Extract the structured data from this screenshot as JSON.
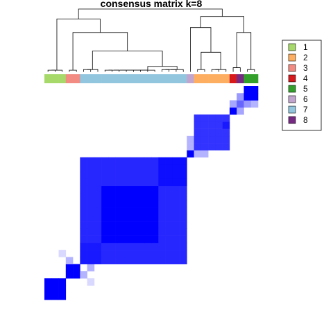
{
  "chart_data": {
    "type": "heatmap",
    "title": "consensus matrix k=8",
    "n_samples": 30,
    "palette": {
      "zero": "#ffffff",
      "one": "#0000ff",
      "dendrogram": "#000000"
    },
    "cluster_colors": {
      "1": "#a6d96a",
      "2": "#fdae61",
      "3": "#f28b82",
      "4": "#d7191c",
      "5": "#33a02c",
      "6": "#c2a5cf",
      "7": "#92c5de",
      "8": "#762a83"
    },
    "legend": {
      "position": "right",
      "entries": [
        "1",
        "2",
        "3",
        "4",
        "5",
        "6",
        "7",
        "8"
      ]
    },
    "sample_order_clusters": [
      1,
      1,
      1,
      3,
      3,
      7,
      7,
      7,
      7,
      7,
      7,
      7,
      7,
      7,
      7,
      7,
      7,
      7,
      7,
      7,
      6,
      2,
      2,
      2,
      2,
      2,
      4,
      8,
      5,
      5
    ],
    "consensus_blocks": [
      {
        "cluster": "1",
        "from": 0,
        "to": 2,
        "value": 1.0
      },
      {
        "cluster": "3",
        "from": 3,
        "to": 4,
        "value": 1.0
      },
      {
        "cluster": "7",
        "from": 5,
        "to": 19,
        "value": 0.85
      },
      {
        "cluster": "6",
        "from": 20,
        "to": 20,
        "value": 1.0
      },
      {
        "cluster": "2",
        "from": 21,
        "to": 25,
        "value": 0.8
      },
      {
        "cluster": "4",
        "from": 26,
        "to": 26,
        "value": 1.0
      },
      {
        "cluster": "8",
        "from": 27,
        "to": 27,
        "value": 0.6
      },
      {
        "cluster": "5",
        "from": 28,
        "to": 29,
        "value": 1.0
      }
    ]
  }
}
